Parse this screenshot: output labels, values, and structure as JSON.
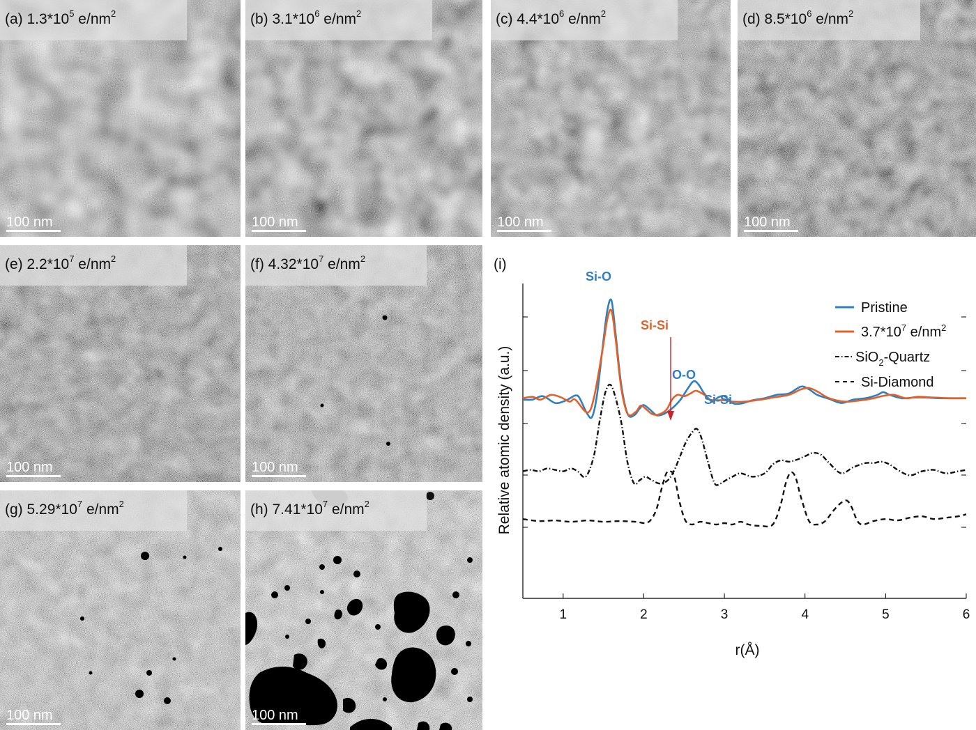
{
  "panels": [
    {
      "id": "a",
      "label_prefix": "(a) 1.3*10",
      "label_exp": "5",
      "label_unit": " e/nm",
      "label_unit_exp": "2",
      "scale_bar": "100 nm"
    },
    {
      "id": "b",
      "label_prefix": "(b) 3.1*10",
      "label_exp": "6",
      "label_unit": " e/nm",
      "label_unit_exp": "2",
      "scale_bar": "100 nm"
    },
    {
      "id": "c",
      "label_prefix": "(c) 4.4*10",
      "label_exp": "6",
      "label_unit": " e/nm",
      "label_unit_exp": "2",
      "scale_bar": "100 nm"
    },
    {
      "id": "d",
      "label_prefix": "(d) 8.5*10",
      "label_exp": "6",
      "label_unit": " e/nm",
      "label_unit_exp": "2",
      "scale_bar": "100 nm"
    },
    {
      "id": "e",
      "label_prefix": "(e) 2.2*10",
      "label_exp": "7",
      "label_unit": " e/nm",
      "label_unit_exp": "2",
      "scale_bar": "100 nm"
    },
    {
      "id": "f",
      "label_prefix": "(f) 4.32*10",
      "label_exp": "7",
      "label_unit": " e/nm",
      "label_unit_exp": "2",
      "scale_bar": "100 nm"
    },
    {
      "id": "g",
      "label_prefix": "(g) 5.29*10",
      "label_exp": "7",
      "label_unit": " e/nm",
      "label_unit_exp": "2",
      "scale_bar": "100 nm"
    },
    {
      "id": "h",
      "label_prefix": "(h) 7.41*10",
      "label_exp": "7",
      "label_unit": " e/nm",
      "label_unit_exp": "2",
      "scale_bar": "100 nm"
    }
  ],
  "chart_data": {
    "type": "line",
    "panel_label": "(i)",
    "xlabel": "r(Å)",
    "ylabel": "Relative atomic density (a.u.)",
    "xlim": [
      0.5,
      6
    ],
    "x_ticks": [
      "1",
      "2",
      "3",
      "4",
      "5",
      "6"
    ],
    "y_ticks_shown": false,
    "grid": false,
    "legend_position": "top-right",
    "colors": {
      "pristine": "#2f7fc1",
      "irradiated": "#e0622a",
      "quartz": "#111111",
      "diamond": "#111111"
    },
    "legend": {
      "pristine": "Pristine",
      "irradiated_prefix": "3.7*10",
      "irradiated_exp": "7",
      "irradiated_unit": " e/nm",
      "irradiated_unit_exp": "2",
      "quartz_prefix": "SiO",
      "quartz_sub": "2",
      "quartz_suffix": "-Quartz",
      "diamond": "Si-Diamond"
    },
    "annotations": {
      "si_o": "Si-O",
      "si_si_red": "Si-Si",
      "o_o": "O-O",
      "si_si_blue": "Si-Si"
    },
    "series": [
      {
        "key": "pristine",
        "style": "solid",
        "x": [
          0.5,
          0.62,
          0.75,
          0.9,
          1.02,
          1.1,
          1.15,
          1.2,
          1.3,
          1.36,
          1.42,
          1.5,
          1.55,
          1.6,
          1.65,
          1.72,
          1.8,
          1.88,
          1.95,
          2.0,
          2.08,
          2.16,
          2.25,
          2.35,
          2.45,
          2.55,
          2.62,
          2.68,
          2.75,
          2.85,
          2.92,
          3.0,
          3.1,
          3.2,
          3.35,
          3.5,
          3.65,
          3.8,
          3.95,
          4.05,
          4.15,
          4.3,
          4.45,
          4.6,
          4.75,
          4.9,
          4.97,
          5.05,
          5.2,
          5.35,
          5.5,
          5.65,
          5.8,
          6.0
        ],
        "y": [
          0.33,
          0.33,
          0.38,
          0.28,
          0.31,
          0.36,
          0.39,
          0.36,
          0.12,
          0.08,
          0.4,
          1.2,
          1.65,
          1.78,
          1.3,
          0.55,
          0.12,
          0.1,
          0.2,
          0.25,
          0.18,
          0.1,
          0.12,
          0.2,
          0.32,
          0.5,
          0.6,
          0.55,
          0.42,
          0.3,
          0.36,
          0.38,
          0.28,
          0.27,
          0.32,
          0.35,
          0.4,
          0.42,
          0.52,
          0.48,
          0.4,
          0.34,
          0.28,
          0.33,
          0.35,
          0.4,
          0.44,
          0.4,
          0.35,
          0.36,
          0.36,
          0.35,
          0.35,
          0.35
        ]
      },
      {
        "key": "irradiated",
        "style": "solid",
        "x": [
          0.5,
          0.62,
          0.72,
          0.85,
          0.98,
          1.08,
          1.15,
          1.3,
          1.38,
          1.48,
          1.55,
          1.6,
          1.65,
          1.72,
          1.8,
          1.9,
          1.96,
          2.02,
          2.1,
          2.18,
          2.28,
          2.35,
          2.42,
          2.5,
          2.58,
          2.65,
          2.75,
          2.82,
          2.92,
          3.0,
          3.1,
          3.25,
          3.45,
          3.6,
          3.8,
          3.95,
          4.05,
          4.15,
          4.3,
          4.5,
          4.7,
          4.85,
          4.95,
          5.1,
          5.25,
          5.4,
          5.6,
          5.8,
          6.0
        ],
        "y": [
          0.35,
          0.37,
          0.33,
          0.4,
          0.36,
          0.3,
          0.33,
          0.14,
          0.35,
          1.0,
          1.52,
          1.63,
          1.22,
          0.5,
          0.12,
          0.15,
          0.24,
          0.2,
          0.12,
          0.11,
          0.18,
          0.33,
          0.4,
          0.38,
          0.42,
          0.46,
          0.4,
          0.33,
          0.32,
          0.32,
          0.3,
          0.3,
          0.33,
          0.36,
          0.4,
          0.48,
          0.5,
          0.45,
          0.35,
          0.3,
          0.32,
          0.35,
          0.38,
          0.4,
          0.35,
          0.37,
          0.36,
          0.35,
          0.35
        ]
      },
      {
        "key": "quartz",
        "style": "dashdot",
        "x": [
          0.5,
          0.6,
          0.7,
          0.8,
          0.9,
          1.0,
          1.1,
          1.18,
          1.28,
          1.38,
          1.45,
          1.52,
          1.58,
          1.64,
          1.72,
          1.8,
          1.88,
          1.95,
          2.02,
          2.1,
          2.2,
          2.3,
          2.38,
          2.45,
          2.52,
          2.6,
          2.66,
          2.72,
          2.8,
          2.88,
          2.95,
          3.02,
          3.1,
          3.2,
          3.35,
          3.5,
          3.6,
          3.7,
          3.8,
          3.9,
          4.0,
          4.1,
          4.2,
          4.3,
          4.45,
          4.6,
          4.75,
          4.85,
          4.95,
          5.05,
          5.15,
          5.3,
          5.45,
          5.6,
          5.75,
          5.9,
          6.0
        ],
        "y": [
          -0.72,
          -0.7,
          -0.72,
          -0.68,
          -0.7,
          -0.72,
          -0.68,
          -0.72,
          -0.8,
          -0.5,
          0.0,
          0.42,
          0.55,
          0.4,
          0.0,
          -0.6,
          -0.9,
          -0.85,
          -0.8,
          -0.85,
          -0.9,
          -0.85,
          -0.7,
          -0.5,
          -0.3,
          -0.15,
          -0.1,
          -0.25,
          -0.6,
          -0.9,
          -0.9,
          -0.85,
          -0.8,
          -0.75,
          -0.8,
          -0.75,
          -0.62,
          -0.56,
          -0.58,
          -0.55,
          -0.5,
          -0.45,
          -0.48,
          -0.6,
          -0.75,
          -0.66,
          -0.6,
          -0.6,
          -0.58,
          -0.62,
          -0.7,
          -0.78,
          -0.72,
          -0.7,
          -0.75,
          -0.72,
          -0.7
        ]
      },
      {
        "key": "diamond",
        "style": "dashed",
        "x": [
          0.5,
          0.7,
          0.9,
          1.1,
          1.3,
          1.5,
          1.7,
          1.9,
          2.05,
          2.15,
          2.22,
          2.28,
          2.33,
          2.38,
          2.45,
          2.52,
          2.6,
          2.7,
          2.8,
          2.9,
          3.0,
          3.1,
          3.2,
          3.3,
          3.45,
          3.6,
          3.7,
          3.76,
          3.82,
          3.88,
          3.95,
          4.05,
          4.15,
          4.25,
          4.35,
          4.45,
          4.52,
          4.58,
          4.65,
          4.72,
          4.85,
          5.0,
          5.15,
          5.3,
          5.45,
          5.6,
          5.75,
          5.9,
          6.0
        ],
        "y": [
          -1.42,
          -1.45,
          -1.44,
          -1.46,
          -1.44,
          -1.46,
          -1.45,
          -1.46,
          -1.47,
          -1.3,
          -0.98,
          -0.75,
          -0.72,
          -0.8,
          -1.2,
          -1.45,
          -1.5,
          -1.46,
          -1.48,
          -1.5,
          -1.48,
          -1.5,
          -1.46,
          -1.5,
          -1.52,
          -1.5,
          -1.2,
          -0.9,
          -0.74,
          -0.8,
          -1.1,
          -1.45,
          -1.5,
          -1.45,
          -1.3,
          -1.18,
          -1.15,
          -1.25,
          -1.45,
          -1.5,
          -1.45,
          -1.42,
          -1.44,
          -1.4,
          -1.38,
          -1.42,
          -1.4,
          -1.38,
          -1.35
        ]
      }
    ]
  }
}
